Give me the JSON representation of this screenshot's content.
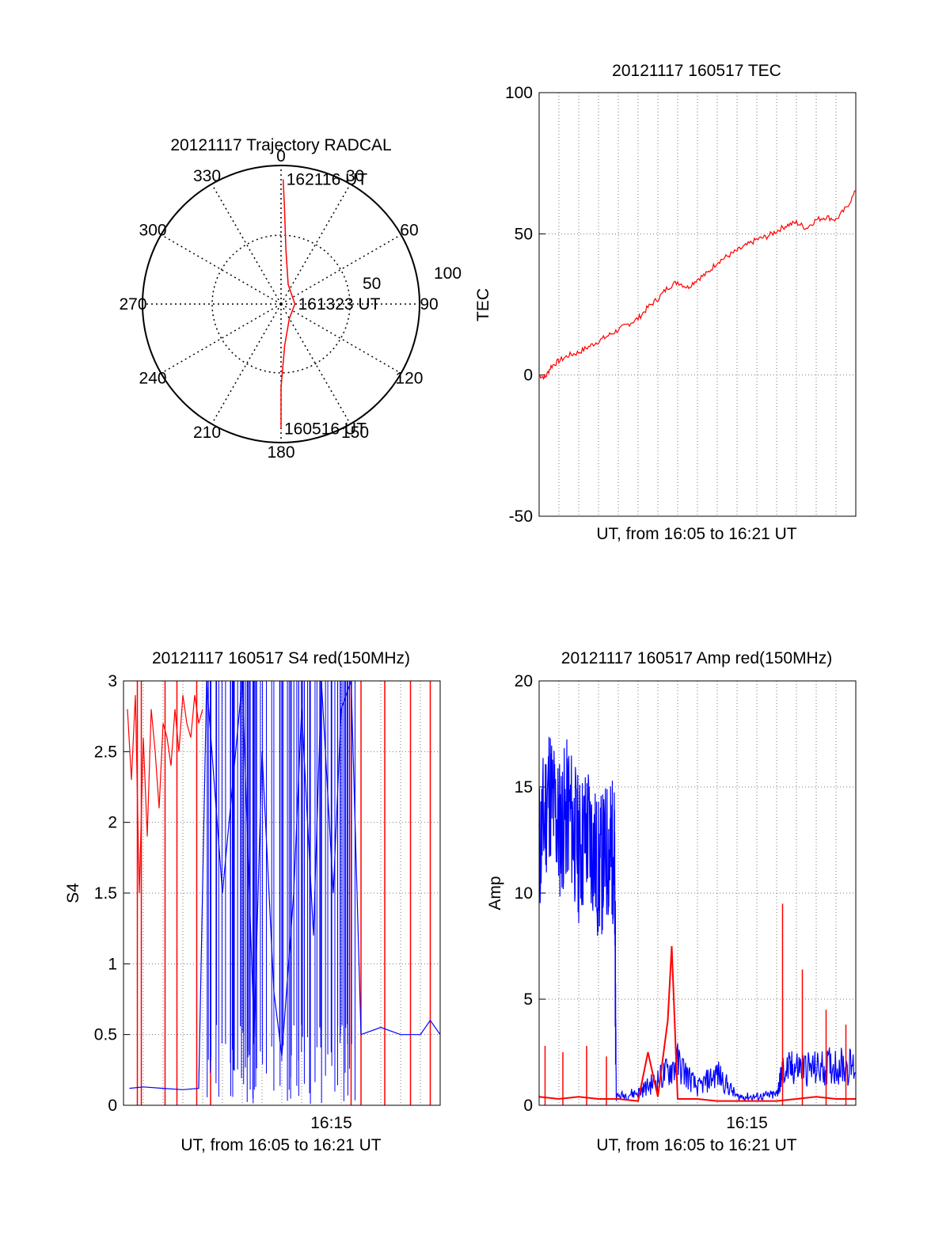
{
  "chart_data": [
    {
      "id": "polar",
      "type": "scatter",
      "title": "20121117 Trajectory RADCAL",
      "azimuth_labels": [
        "0",
        "30",
        "60",
        "90",
        "120",
        "150",
        "180",
        "210",
        "240",
        "270",
        "300",
        "330"
      ],
      "radius_labels": [
        "50",
        "100"
      ],
      "rlim": [
        0,
        100
      ],
      "grid": true,
      "series": [
        {
          "color": "#ff0000",
          "points": [
            {
              "az": 180,
              "r": 90
            },
            {
              "az": 180,
              "r": 60
            },
            {
              "az": 175,
              "r": 30
            },
            {
              "az": 150,
              "r": 12
            },
            {
              "az": 90,
              "r": 10
            },
            {
              "az": 20,
              "r": 15
            },
            {
              "az": 5,
              "r": 40
            },
            {
              "az": 2,
              "r": 70
            },
            {
              "az": 1,
              "r": 90
            }
          ]
        }
      ],
      "annotations": [
        {
          "text": "162116 UT",
          "az": 1,
          "r": 90
        },
        {
          "text": "161323 UT",
          "az": 90,
          "r": 10
        },
        {
          "text": "160516 UT",
          "az": 180,
          "r": 90
        }
      ]
    },
    {
      "id": "tec",
      "type": "line",
      "title": "20121117 160517 TEC",
      "xlabel": "UT, from 16:05 to 16:21 UT",
      "ylabel": "TEC",
      "xlim": [
        0,
        16
      ],
      "ylim": [
        -50,
        100
      ],
      "yticks": [
        "-50",
        "0",
        "50",
        "100"
      ],
      "grid": true,
      "series": [
        {
          "color": "#ff0000",
          "x": [
            0,
            0.3,
            0.6,
            1,
            1.5,
            2,
            2.5,
            3,
            3.5,
            4,
            4.5,
            5,
            5.5,
            6,
            6.5,
            7,
            7.5,
            8,
            8.5,
            9,
            9.5,
            10,
            10.5,
            11,
            11.5,
            12,
            12.5,
            13,
            13.5,
            14,
            14.5,
            15,
            15.5,
            16
          ],
          "values": [
            0,
            -1,
            3,
            5,
            7,
            8,
            10,
            12,
            14,
            16,
            18,
            20,
            24,
            27,
            31,
            33,
            31,
            34,
            36,
            40,
            42,
            44,
            46,
            48,
            49,
            51,
            53,
            54,
            52,
            55,
            56,
            55,
            59,
            65
          ]
        }
      ]
    },
    {
      "id": "s4",
      "type": "line",
      "title": "20121117 160517 S4 red(150MHz)",
      "xlabel": "UT, from 16:05 to 16:21 UT",
      "ylabel": "S4",
      "xlim": [
        0,
        16
      ],
      "ylim": [
        0,
        3
      ],
      "yticks": [
        "0",
        "0.5",
        "1",
        "1.5",
        "2",
        "2.5",
        "3"
      ],
      "xticks": [
        {
          "label": "16:15",
          "x": 10.5
        }
      ],
      "grid": true,
      "series": [
        {
          "color": "#ff0000",
          "x": [
            0.2,
            0.4,
            0.6,
            0.8,
            1,
            1.2,
            1.4,
            1.6,
            1.8,
            2,
            2.2,
            2.4,
            2.6,
            2.8,
            3,
            3.2,
            3.4,
            3.6,
            3.8,
            4
          ],
          "values": [
            2.8,
            2.3,
            2.9,
            1.5,
            2.6,
            1.9,
            2.8,
            2.5,
            2.1,
            2.7,
            2.6,
            2.4,
            2.8,
            2.5,
            2.9,
            2.7,
            2.6,
            2.9,
            2.7,
            2.8
          ],
          "drops": [
            0.7,
            0.9,
            2.1,
            2.7,
            3.7,
            4.4,
            11.5,
            12.0,
            13.2,
            14.5,
            15.5
          ]
        },
        {
          "color": "#0000ff",
          "x": [
            0.3,
            1,
            2,
            3,
            3.8,
            4.2,
            5,
            6,
            6.6,
            7,
            7.6,
            8,
            8.6,
            9,
            9.6,
            10,
            10.6,
            11,
            11.5,
            12,
            13,
            14,
            15,
            15.5,
            16
          ],
          "values": [
            0.12,
            0.13,
            0.12,
            0.11,
            0.12,
            3,
            1.5,
            3,
            0.5,
            2.5,
            0.8,
            0.35,
            1.5,
            2.8,
            1.2,
            3,
            1.5,
            2.8,
            3,
            0.5,
            0.55,
            0.5,
            0.5,
            0.6,
            0.5
          ]
        }
      ]
    },
    {
      "id": "amp",
      "type": "line",
      "title": "20121117 160517 Amp red(150MHz)",
      "xlabel": "UT, from 16:05 to 16:21 UT",
      "ylabel": "Amp",
      "xlim": [
        0,
        16
      ],
      "ylim": [
        0,
        20
      ],
      "yticks": [
        "0",
        "5",
        "10",
        "15",
        "20"
      ],
      "xticks": [
        {
          "label": "16:15",
          "x": 10.5
        }
      ],
      "grid": true,
      "series": [
        {
          "color": "#0000ff",
          "x": [
            0,
            0.5,
            1,
            1.5,
            2,
            2.5,
            3,
            3.5,
            3.8,
            3.9,
            5,
            6,
            7,
            8,
            9,
            10,
            11,
            12,
            12.3,
            13,
            14,
            15,
            16
          ],
          "values": [
            12,
            15,
            13,
            14,
            12,
            13,
            11,
            12,
            12,
            0.4,
            0.6,
            1.2,
            2,
            0.8,
            1.5,
            0.4,
            0.4,
            0.5,
            1.6,
            1.8,
            1.7,
            1.9,
            1.8
          ],
          "spread": 3.5
        },
        {
          "color": "#ff0000",
          "x": [
            0,
            1,
            2,
            3,
            4,
            5,
            5.5,
            6,
            6.5,
            6.7,
            7,
            8,
            9,
            10,
            11,
            12,
            13,
            14,
            15,
            16
          ],
          "values": [
            0.4,
            0.3,
            0.4,
            0.3,
            0.3,
            0.2,
            2.5,
            0.4,
            4,
            7.5,
            0.3,
            0.3,
            0.2,
            0.2,
            0.2,
            0.2,
            0.3,
            0.4,
            0.3,
            0.3
          ],
          "spikes": [
            {
              "x": 0.3,
              "y": 2.8
            },
            {
              "x": 1.2,
              "y": 2.5
            },
            {
              "x": 2.4,
              "y": 2.8
            },
            {
              "x": 3.4,
              "y": 2.3
            },
            {
              "x": 12.3,
              "y": 9.5
            },
            {
              "x": 13.3,
              "y": 6.4
            },
            {
              "x": 14.5,
              "y": 4.5
            },
            {
              "x": 15.5,
              "y": 3.8
            }
          ]
        }
      ]
    }
  ]
}
